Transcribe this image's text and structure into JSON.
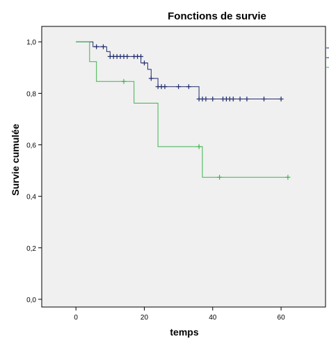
{
  "chart_data": {
    "type": "line",
    "subtype": "kaplan-meier step",
    "title": "Fonctions de survie",
    "xlabel": "temps",
    "ylabel": "Survie cumulée",
    "xlim": [
      -10,
      73
    ],
    "ylim": [
      -0.03,
      1.06
    ],
    "x_ticks": [
      0,
      20,
      40,
      60
    ],
    "x_tick_labels": [
      "0",
      "20",
      "40",
      "60"
    ],
    "y_ticks": [
      0,
      0.2,
      0.4,
      0.6,
      0.8,
      1.0
    ],
    "y_tick_labels": [
      "0,0",
      "0,2",
      "0,4",
      "0,6",
      "0,8",
      "1,0"
    ],
    "grid": false,
    "background_color": "#f0f0f0",
    "legend": "right edge (cut off)",
    "series": [
      {
        "color": "#1f2a6b",
        "steps": [
          [
            0,
            1.0
          ],
          [
            5,
            0.981
          ],
          [
            9,
            0.962
          ],
          [
            10,
            0.943
          ],
          [
            19,
            0.918
          ],
          [
            21,
            0.893
          ],
          [
            22,
            0.858
          ],
          [
            24,
            0.826
          ],
          [
            36,
            0.778
          ],
          [
            60,
            0.778
          ]
        ],
        "censored": [
          [
            6,
            0.981
          ],
          [
            8,
            0.981
          ],
          [
            10,
            0.943
          ],
          [
            11,
            0.943
          ],
          [
            12,
            0.943
          ],
          [
            13,
            0.943
          ],
          [
            14,
            0.943
          ],
          [
            15,
            0.943
          ],
          [
            17,
            0.943
          ],
          [
            18,
            0.943
          ],
          [
            19,
            0.943
          ],
          [
            20,
            0.918
          ],
          [
            22,
            0.858
          ],
          [
            24,
            0.826
          ],
          [
            25,
            0.826
          ],
          [
            26,
            0.826
          ],
          [
            30,
            0.826
          ],
          [
            33,
            0.826
          ],
          [
            36,
            0.778
          ],
          [
            37,
            0.778
          ],
          [
            38,
            0.778
          ],
          [
            40,
            0.778
          ],
          [
            43,
            0.778
          ],
          [
            44,
            0.778
          ],
          [
            45,
            0.778
          ],
          [
            46,
            0.778
          ],
          [
            48,
            0.778
          ],
          [
            50,
            0.778
          ],
          [
            55,
            0.778
          ],
          [
            60,
            0.778
          ]
        ]
      },
      {
        "color": "#3cb44b",
        "steps": [
          [
            0,
            1.0
          ],
          [
            4,
            0.923
          ],
          [
            6,
            0.846
          ],
          [
            17,
            0.762
          ],
          [
            24,
            0.593
          ],
          [
            37,
            0.474
          ],
          [
            62,
            0.474
          ]
        ],
        "censored": [
          [
            14,
            0.846
          ],
          [
            36,
            0.593
          ],
          [
            42,
            0.474
          ],
          [
            62,
            0.474
          ]
        ]
      }
    ]
  }
}
